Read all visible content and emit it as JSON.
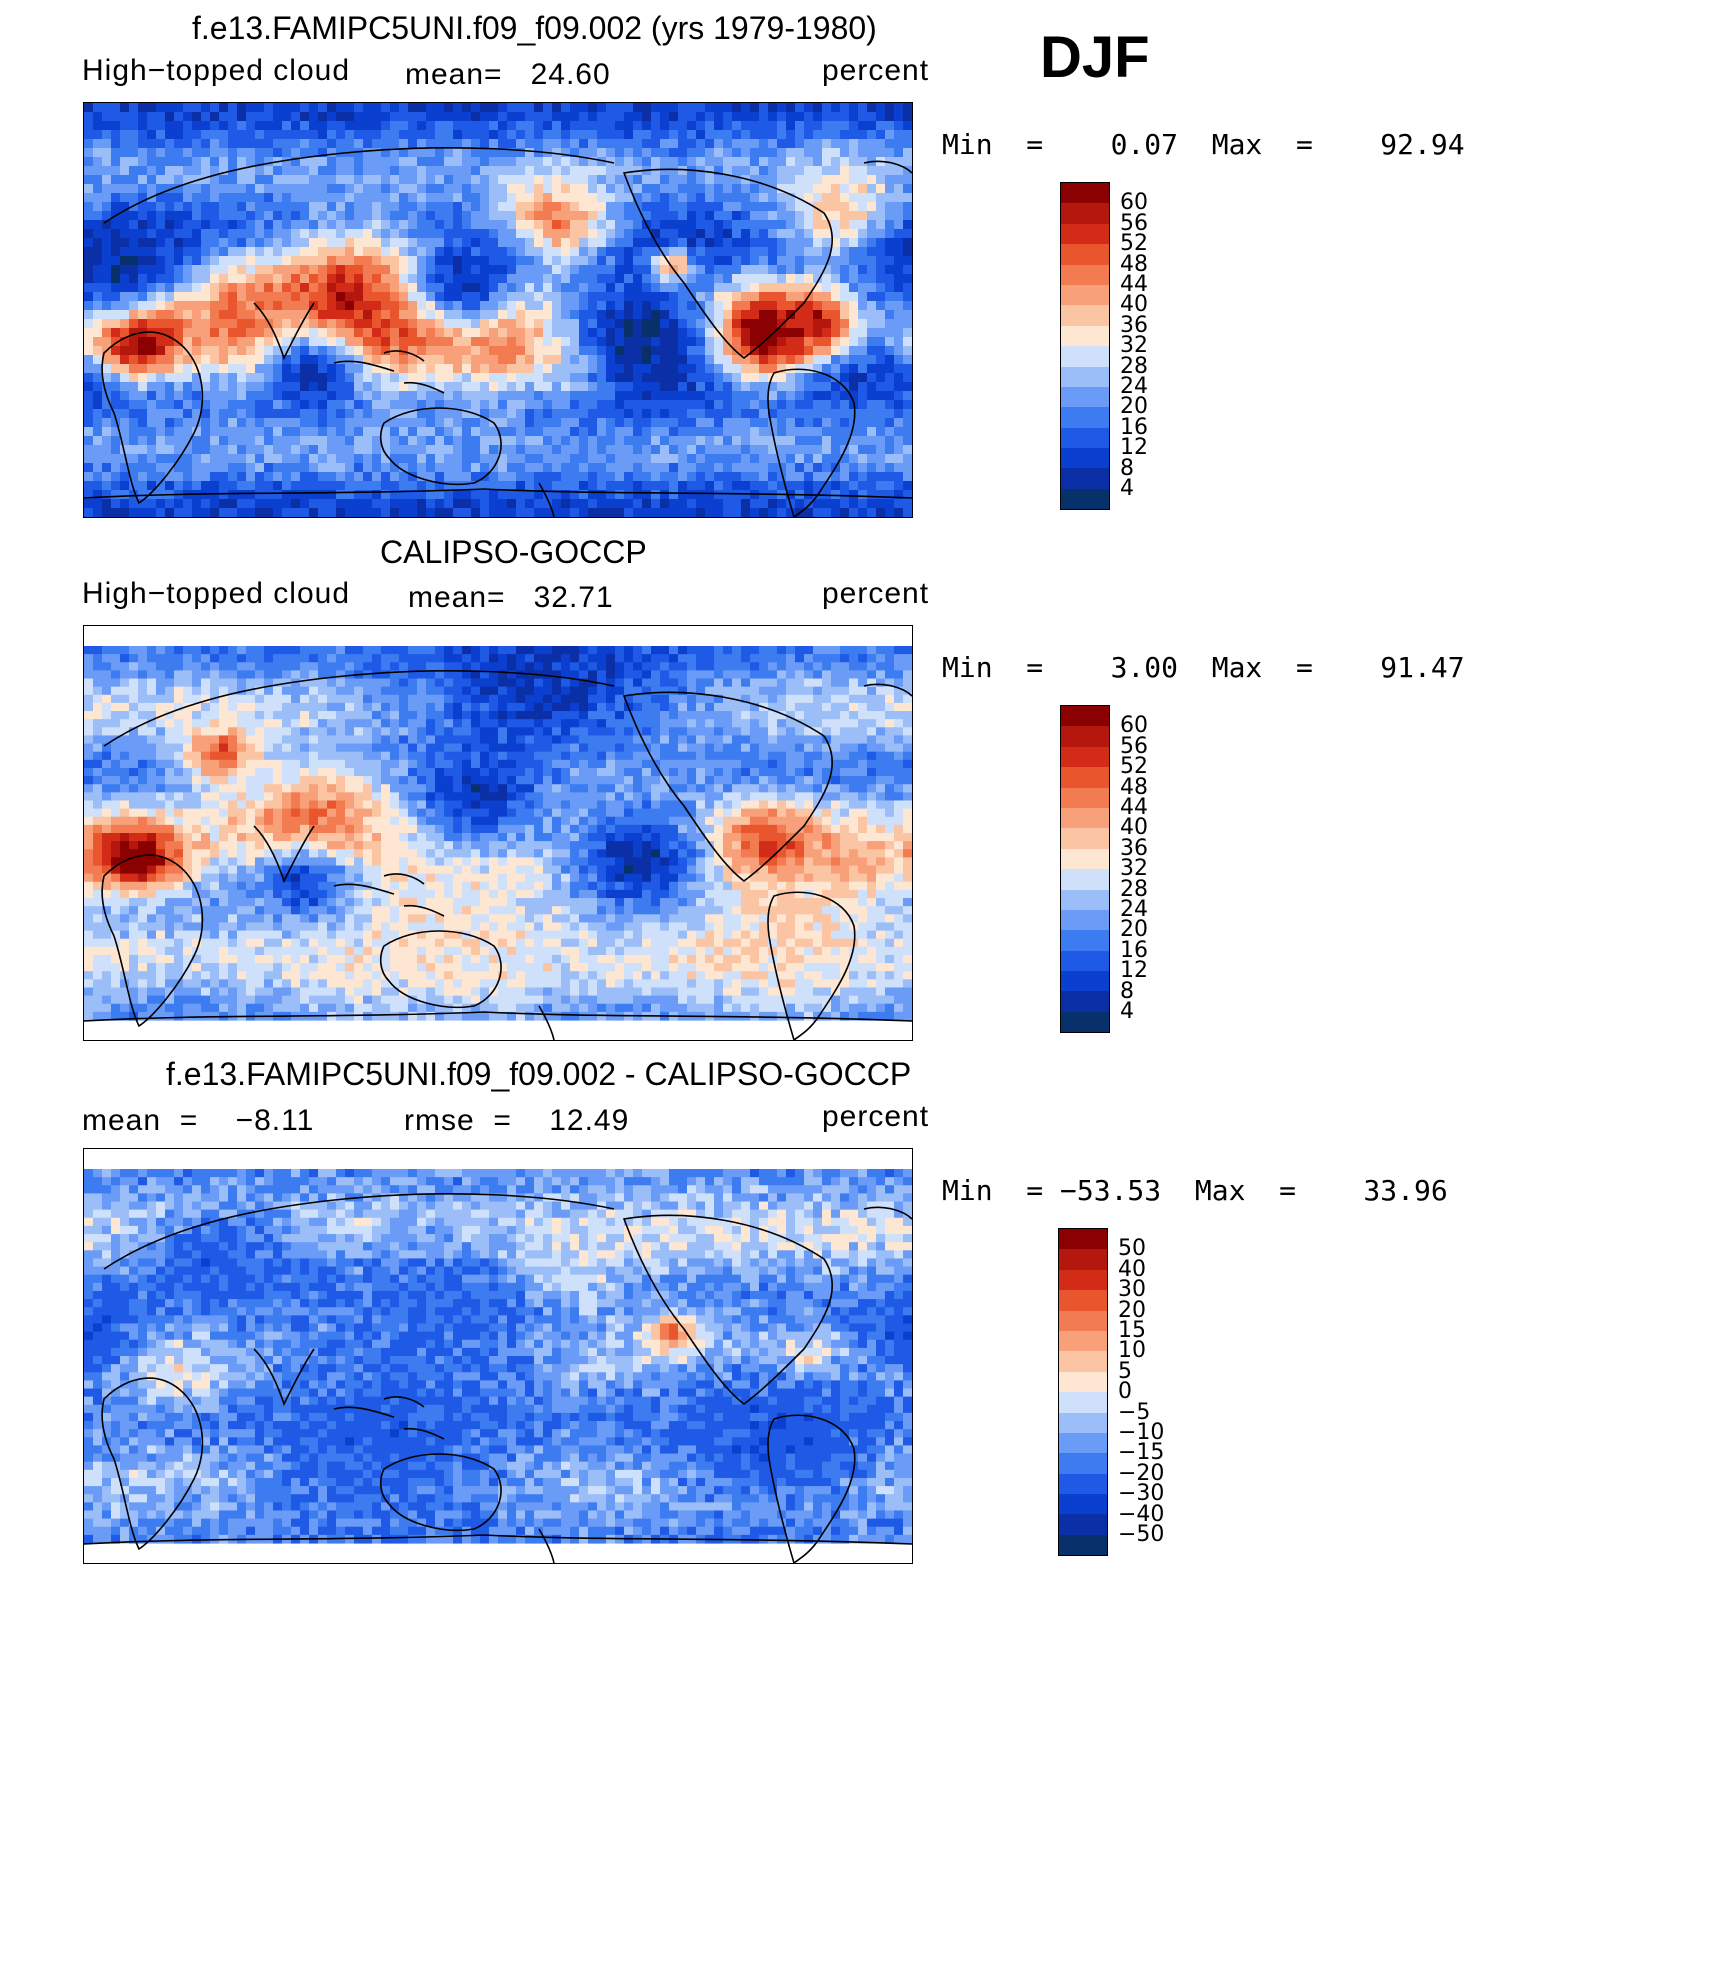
{
  "season": "DJF",
  "colors": {
    "scale12": [
      "#08306b",
      "#0a2fa6",
      "#0b3fcf",
      "#1e5ae6",
      "#3d7bf0",
      "#6a9cf7",
      "#9bbdf8",
      "#cfe0fb",
      "#fde6d2",
      "#fbc4a3",
      "#f7a079",
      "#f37b51",
      "#e9552d",
      "#d22c18",
      "#b3170e",
      "#8b0000"
    ],
    "scaleDiff": [
      "#08306b",
      "#0a2fa6",
      "#0b3fcf",
      "#1e5ae6",
      "#3d7bf0",
      "#6a9cf7",
      "#9bbdf8",
      "#cfe0fb",
      "#fde6d2",
      "#fbc4a3",
      "#f7a079",
      "#f37b51",
      "#e9552d",
      "#d22c18",
      "#b3170e",
      "#8b0000"
    ]
  },
  "panels": [
    {
      "title": "f.e13.FAMIPC5UNI.f09_f09.002 (yrs 1979-1980)",
      "left_label": "High−topped cloud",
      "mid_label": "mean=   24.60",
      "right_label": "percent",
      "minmax": "Min  =    0.07  Max  =    92.94",
      "colorbar": [
        "60",
        "56",
        "52",
        "48",
        "44",
        "40",
        "36",
        "32",
        "28",
        "24",
        "20",
        "16",
        "12",
        "8",
        "4"
      ]
    },
    {
      "title": "CALIPSO-GOCCP",
      "left_label": "High−topped cloud",
      "mid_label": "mean=   32.71",
      "right_label": "percent",
      "minmax": "Min  =    3.00  Max  =    91.47",
      "colorbar": [
        "60",
        "56",
        "52",
        "48",
        "44",
        "40",
        "36",
        "32",
        "28",
        "24",
        "20",
        "16",
        "12",
        "8",
        "4"
      ]
    },
    {
      "title": "f.e13.FAMIPC5UNI.f09_f09.002 - CALIPSO-GOCCP",
      "left_label": "mean  =    −8.11",
      "mid_label": "rmse  =    12.49",
      "right_label": "percent",
      "minmax": "Min  = −53.53  Max  =    33.96",
      "colorbar": [
        "50",
        "40",
        "30",
        "20",
        "15",
        "10",
        "5",
        "0",
        "−5",
        "−10",
        "−15",
        "−20",
        "−30",
        "−40",
        "−50"
      ]
    }
  ],
  "chart_data": [
    {
      "type": "heatmap",
      "title": "f.e13.FAMIPC5UNI.f09_f09.002 (yrs 1979-1980)",
      "variable": "High−topped cloud",
      "units": "percent",
      "mean": 24.6,
      "min": 0.07,
      "max": 92.94,
      "levels": [
        4,
        8,
        12,
        16,
        20,
        24,
        28,
        32,
        36,
        40,
        44,
        48,
        52,
        56,
        60
      ],
      "blobs": [
        {
          "lon": 25,
          "lat": -12,
          "r": 12,
          "v": 72
        },
        {
          "lon": 115,
          "lat": -2,
          "r": 22,
          "v": 66
        },
        {
          "lon": 150,
          "lat": 2,
          "r": 18,
          "v": 62
        },
        {
          "lon": 185,
          "lat": -10,
          "r": 16,
          "v": 56
        },
        {
          "lon": 215,
          "lat": -18,
          "r": 12,
          "v": 52
        },
        {
          "lon": 70,
          "lat": -6,
          "r": 18,
          "v": 50
        },
        {
          "lon": 295,
          "lat": -10,
          "r": 14,
          "v": 74
        },
        {
          "lon": 320,
          "lat": -4,
          "r": 8,
          "v": 60
        },
        {
          "lon": 205,
          "lat": 38,
          "r": 14,
          "v": 48
        },
        {
          "lon": 255,
          "lat": 18,
          "r": 5,
          "v": 60
        },
        {
          "lon": 330,
          "lat": 42,
          "r": 16,
          "v": 38
        },
        {
          "lon": 165,
          "lat": 14,
          "r": 16,
          "v": 6
        },
        {
          "lon": 240,
          "lat": -12,
          "r": 20,
          "v": 4
        },
        {
          "lon": 100,
          "lat": -28,
          "r": 14,
          "v": 8
        },
        {
          "lon": 10,
          "lat": 20,
          "r": 16,
          "v": 6
        }
      ],
      "background": 16
    },
    {
      "type": "heatmap",
      "title": "CALIPSO-GOCCP",
      "variable": "High−topped cloud",
      "units": "percent",
      "mean": 32.71,
      "min": 3.0,
      "max": 91.47,
      "levels": [
        4,
        8,
        12,
        16,
        20,
        24,
        28,
        32,
        36,
        40,
        44,
        48,
        52,
        56,
        60
      ],
      "blobs": [
        {
          "lon": 22,
          "lat": -12,
          "r": 12,
          "v": 70
        },
        {
          "lon": 110,
          "lat": -2,
          "r": 22,
          "v": 64
        },
        {
          "lon": 150,
          "lat": 0,
          "r": 18,
          "v": 58
        },
        {
          "lon": 190,
          "lat": -12,
          "r": 18,
          "v": 48
        },
        {
          "lon": 295,
          "lat": -10,
          "r": 14,
          "v": 74
        },
        {
          "lon": 330,
          "lat": -18,
          "r": 12,
          "v": 48
        },
        {
          "lon": 60,
          "lat": 38,
          "r": 10,
          "v": 50
        },
        {
          "lon": 205,
          "lat": 32,
          "r": 30,
          "v": 42
        },
        {
          "lon": 150,
          "lat": -42,
          "r": 40,
          "v": 34
        },
        {
          "lon": 300,
          "lat": -45,
          "r": 30,
          "v": 36
        },
        {
          "lon": 170,
          "lat": 18,
          "r": 18,
          "v": 8
        },
        {
          "lon": 240,
          "lat": -12,
          "r": 18,
          "v": 6
        },
        {
          "lon": 95,
          "lat": -25,
          "r": 14,
          "v": 10
        },
        {
          "lon": 200,
          "lat": 72,
          "r": 40,
          "v": 8
        }
      ],
      "background": 24
    },
    {
      "type": "heatmap",
      "title": "f.e13.FAMIPC5UNI.f09_f09.002 - CALIPSO-GOCCP",
      "units": "percent",
      "mean": -8.11,
      "rmse": 12.49,
      "min": -53.53,
      "max": 33.96,
      "levels": [
        -50,
        -40,
        -30,
        -20,
        -15,
        -10,
        -5,
        0,
        5,
        10,
        15,
        20,
        30,
        40,
        50
      ],
      "blobs": [
        {
          "lon": 255,
          "lat": 10,
          "r": 6,
          "v": 30
        },
        {
          "lon": 315,
          "lat": 0,
          "r": 6,
          "v": 20
        },
        {
          "lon": 155,
          "lat": 8,
          "r": 6,
          "v": 14
        },
        {
          "lon": 200,
          "lat": 40,
          "r": 16,
          "v": 6
        },
        {
          "lon": 40,
          "lat": -10,
          "r": 10,
          "v": 8
        },
        {
          "lon": 0,
          "lat": 12,
          "r": 14,
          "v": -30
        },
        {
          "lon": 160,
          "lat": 22,
          "r": 26,
          "v": -22
        },
        {
          "lon": 130,
          "lat": -40,
          "r": 40,
          "v": -24
        },
        {
          "lon": 300,
          "lat": -40,
          "r": 30,
          "v": -26
        },
        {
          "lon": 60,
          "lat": 45,
          "r": 20,
          "v": -24
        }
      ],
      "background": -8
    }
  ]
}
